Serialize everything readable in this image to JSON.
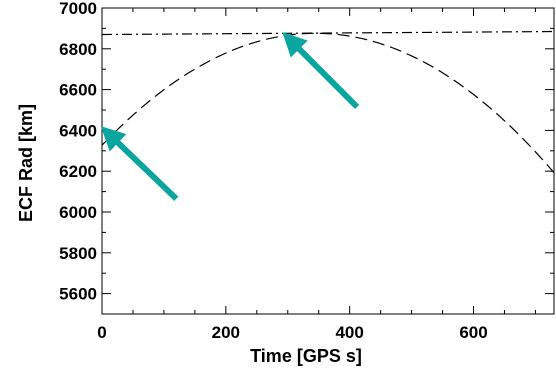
{
  "chart_data": {
    "type": "line",
    "title": "",
    "xlabel": "Time [GPS s]",
    "ylabel": "ECF Rad [km]",
    "xlim": [
      0,
      730
    ],
    "ylim": [
      5500,
      7000
    ],
    "x_ticks": [
      0,
      200,
      400,
      600
    ],
    "y_ticks": [
      5600,
      5800,
      6000,
      6200,
      6400,
      6600,
      6800,
      7000
    ],
    "grid": false,
    "legend": "none",
    "series": [
      {
        "style": "dash-dot",
        "color": "#000000",
        "x": [
          0,
          100,
          200,
          300,
          400,
          500,
          600,
          730
        ],
        "y": [
          6870,
          6872,
          6874,
          6876,
          6878,
          6880,
          6882,
          6885
        ]
      },
      {
        "style": "dashed",
        "color": "#000000",
        "x": [
          0,
          50,
          100,
          150,
          200,
          250,
          300,
          350,
          400,
          450,
          500,
          550,
          600,
          650,
          700,
          730
        ],
        "y": [
          6415,
          6530,
          6630,
          6715,
          6782,
          6831,
          6862,
          6876,
          6872,
          6850,
          6811,
          6754,
          6680,
          6588,
          6480,
          6062
        ]
      }
    ],
    "annotations": [
      {
        "type": "arrow",
        "color": "#0aa59e",
        "from": [
          120,
          6065
        ],
        "to": [
          12,
          6380
        ]
      },
      {
        "type": "arrow",
        "color": "#0aa59e",
        "from": [
          412,
          6515
        ],
        "to": [
          305,
          6840
        ]
      }
    ]
  }
}
